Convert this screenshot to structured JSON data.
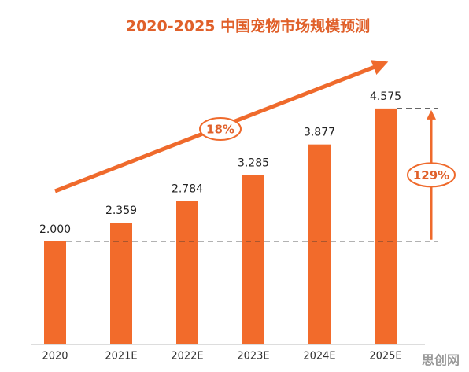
{
  "chart_data": {
    "type": "bar",
    "title": "2020-2025 中国宠物市场规模预测",
    "categories": [
      "2020",
      "2021E",
      "2022E",
      "2023E",
      "2024E",
      "2025E"
    ],
    "values": [
      2,
      2.359,
      2.784,
      3.285,
      3.877,
      4.575
    ],
    "value_labels": [
      "2.000",
      "2.359",
      "2.784",
      "3.285",
      "3.877",
      "4.575"
    ],
    "color": "#f26b2b",
    "annotations": [
      "18%",
      "129%"
    ]
  },
  "watermark": "思创网"
}
